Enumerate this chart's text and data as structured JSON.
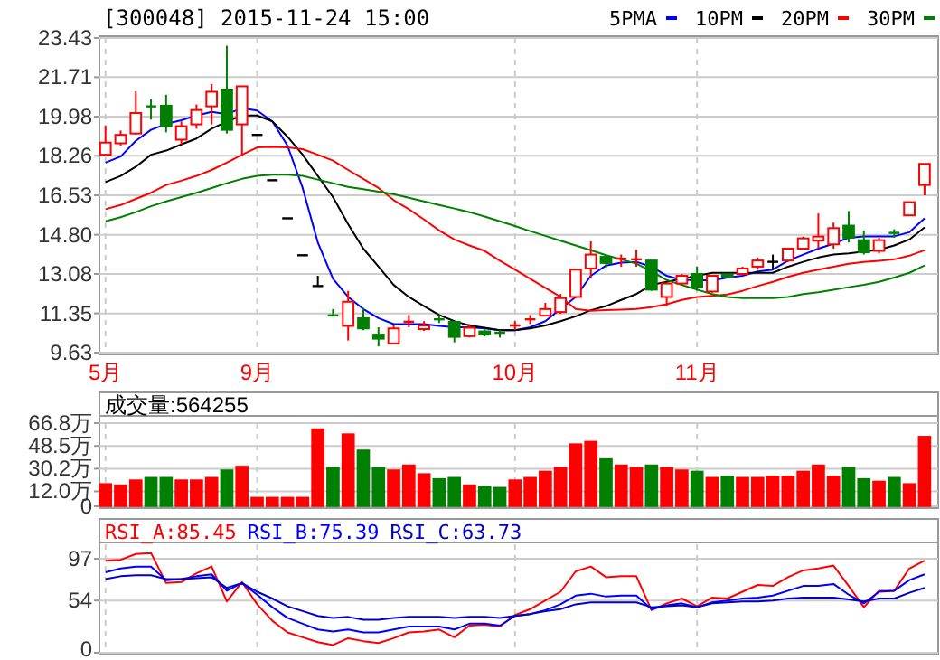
{
  "chart_data": [
    {
      "type": "candlestick",
      "title": "[300048] 2015-11-24 15:00",
      "legend": "top right",
      "grid": true,
      "categories": [
        "5月",
        null,
        null,
        null,
        null,
        null,
        null,
        null,
        null,
        null,
        "9月",
        null,
        null,
        null,
        null,
        null,
        null,
        null,
        null,
        null,
        null,
        null,
        null,
        null,
        null,
        null,
        null,
        "10月",
        null,
        null,
        null,
        null,
        null,
        null,
        null,
        null,
        null,
        null,
        null,
        "11月",
        null,
        null,
        null,
        null,
        null,
        null,
        null,
        null,
        null,
        null,
        null,
        null,
        null,
        null,
        null
      ],
      "ylim": [
        9.63,
        23.43
      ],
      "yticks": [
        9.63,
        11.35,
        13.08,
        {
          "value": 14.8,
          "label": "14.80"
        },
        16.53,
        18.26,
        19.98,
        21.71,
        23.43
      ],
      "ohlc": [
        [
          18.31,
          19.58,
          18.23,
          18.84
        ],
        [
          18.81,
          19.37,
          18.71,
          19.18
        ],
        [
          19.24,
          21.09,
          19.19,
          20.14
        ],
        [
          20.43,
          20.75,
          19.85,
          20.4
        ],
        [
          20.46,
          20.94,
          19.29,
          19.56
        ],
        [
          18.97,
          19.77,
          18.76,
          19.56
        ],
        [
          19.64,
          20.51,
          19.45,
          20.27
        ],
        [
          20.43,
          21.41,
          19.64,
          21.07
        ],
        [
          21.17,
          23.09,
          19.24,
          19.4
        ],
        [
          19.64,
          21.31,
          18.31,
          21.31
        ],
        [
          19.18,
          19.18,
          19.18,
          19.18
        ],
        [
          17.19,
          17.19,
          17.19,
          17.19
        ],
        [
          15.52,
          15.52,
          15.52,
          15.52
        ],
        [
          13.9,
          13.9,
          13.9,
          13.9
        ],
        [
          12.55,
          13.0,
          12.55,
          12.55
        ],
        [
          11.26,
          11.54,
          11.22,
          11.24
        ],
        [
          10.8,
          12.34,
          10.16,
          11.86
        ],
        [
          11.14,
          11.59,
          10.61,
          10.69
        ],
        [
          10.42,
          10.74,
          9.9,
          10.24
        ],
        [
          10.03,
          10.85,
          10.03,
          10.69
        ],
        [
          10.93,
          11.28,
          10.74,
          10.98
        ],
        [
          10.66,
          11.01,
          10.58,
          10.82
        ],
        [
          11.09,
          11.28,
          10.93,
          11.04
        ],
        [
          10.98,
          10.98,
          10.08,
          10.32
        ],
        [
          10.35,
          10.88,
          10.29,
          10.72
        ],
        [
          10.56,
          10.64,
          10.34,
          10.42
        ],
        [
          10.5,
          10.61,
          10.29,
          10.48
        ],
        [
          10.77,
          11.01,
          10.61,
          10.82
        ],
        [
          11.04,
          11.28,
          10.88,
          11.09
        ],
        [
          11.25,
          11.81,
          11.25,
          11.54
        ],
        [
          11.41,
          12.2,
          11.33,
          12.02
        ],
        [
          12.07,
          13.27,
          12.02,
          13.27
        ],
        [
          13.32,
          14.51,
          12.92,
          13.93
        ],
        [
          13.83,
          13.93,
          13.35,
          13.56
        ],
        [
          13.7,
          13.93,
          13.4,
          13.75
        ],
        [
          13.67,
          14.14,
          13.4,
          13.72
        ],
        [
          13.67,
          13.67,
          12.34,
          12.39
        ],
        [
          12.07,
          12.66,
          11.67,
          12.66
        ],
        [
          12.66,
          13.08,
          12.6,
          13.0
        ],
        [
          13.08,
          13.4,
          12.34,
          12.5
        ],
        [
          12.31,
          13.0,
          12.26,
          13.0
        ],
        [
          13.05,
          13.08,
          12.92,
          12.95
        ],
        [
          13.08,
          13.4,
          13.03,
          13.32
        ],
        [
          13.4,
          13.8,
          13.27,
          13.67
        ],
        [
          13.61,
          13.93,
          13.27,
          13.61
        ],
        [
          13.67,
          14.19,
          13.61,
          14.19
        ],
        [
          14.19,
          14.72,
          14.14,
          14.64
        ],
        [
          14.54,
          15.73,
          14.19,
          14.72
        ],
        [
          14.38,
          15.33,
          14.19,
          15.09
        ],
        [
          15.2,
          15.84,
          14.46,
          14.67
        ],
        [
          14.56,
          14.99,
          13.93,
          14.03
        ],
        [
          14.09,
          14.67,
          13.98,
          14.56
        ],
        [
          14.88,
          15.04,
          14.67,
          14.85
        ],
        [
          15.65,
          16.23,
          15.65,
          16.23
        ],
        [
          16.98,
          17.91,
          16.53,
          17.91
        ]
      ],
      "colors": [
        "#ff0000",
        "#ff0000",
        "#ff0000",
        "#008000",
        "#008000",
        "#ff0000",
        "#ff0000",
        "#ff0000",
        "#008000",
        "#ff0000",
        "#000000",
        "#000000",
        "#000000",
        "#000000",
        "#000000",
        "#008000",
        "#ff0000",
        "#008000",
        "#008000",
        "#ff0000",
        "#ff0000",
        "#ff0000",
        "#008000",
        "#008000",
        "#ff0000",
        "#008000",
        "#008000",
        "#ff0000",
        "#ff0000",
        "#ff0000",
        "#ff0000",
        "#ff0000",
        "#ff0000",
        "#008000",
        "#ff0000",
        "#ff0000",
        "#008000",
        "#ff0000",
        "#ff0000",
        "#008000",
        "#ff0000",
        "#008000",
        "#ff0000",
        "#ff0000",
        "#000000",
        "#ff0000",
        "#ff0000",
        "#ff0000",
        "#ff0000",
        "#008000",
        "#008000",
        "#ff0000",
        "#008000",
        "#ff0000",
        "#ff0000"
      ],
      "series": [
        {
          "type": "line",
          "name": "5PMA",
          "color": "#0000ff",
          "values": [
            17.96,
            18.23,
            18.92,
            19.4,
            19.66,
            19.82,
            20.03,
            20.19,
            20.09,
            20.35,
            20.25,
            19.77,
            18.71,
            16.85,
            14.46,
            12.87,
            12.07,
            11.54,
            11.14,
            10.88,
            10.88,
            10.88,
            10.8,
            10.74,
            10.74,
            10.69,
            10.61,
            10.61,
            10.74,
            11.01,
            11.54,
            12.07,
            13.0,
            13.45,
            13.58,
            13.61,
            13.4,
            13.0,
            12.81,
            12.81,
            12.79,
            12.92,
            13.0,
            13.19,
            13.27,
            13.66,
            13.93,
            14.19,
            14.41,
            14.67,
            14.73,
            14.73,
            14.73,
            14.91,
            15.52
          ]
        },
        {
          "type": "line",
          "name": "10PM",
          "color": "#000000",
          "values": [
            17.11,
            17.38,
            17.78,
            18.31,
            18.49,
            18.76,
            19.02,
            19.45,
            19.77,
            20.03,
            20.03,
            19.77,
            19.1,
            18.31,
            17.38,
            16.45,
            15.26,
            14.19,
            13.4,
            12.6,
            12.07,
            11.67,
            11.28,
            11.01,
            10.82,
            10.72,
            10.61,
            10.61,
            10.69,
            10.82,
            11.01,
            11.22,
            11.49,
            11.67,
            11.94,
            12.2,
            12.6,
            12.73,
            12.87,
            13.0,
            13.13,
            13.13,
            13.13,
            13.13,
            13.13,
            13.4,
            13.61,
            13.8,
            13.93,
            13.98,
            14.06,
            14.14,
            14.33,
            14.59,
            15.12
          ]
        },
        {
          "type": "line",
          "name": "20PM",
          "color": "#ff0000",
          "values": [
            15.92,
            16.1,
            16.37,
            16.64,
            16.98,
            17.17,
            17.38,
            17.64,
            17.96,
            18.31,
            18.63,
            18.65,
            18.63,
            18.55,
            18.31,
            18.05,
            17.64,
            17.25,
            16.85,
            16.32,
            15.92,
            15.47,
            14.99,
            14.59,
            14.33,
            14.09,
            13.66,
            13.27,
            12.87,
            12.47,
            12.07,
            11.54,
            11.46,
            11.49,
            11.51,
            11.54,
            11.62,
            11.75,
            11.94,
            12.07,
            12.12,
            12.18,
            12.34,
            12.55,
            12.73,
            12.95,
            13.13,
            13.27,
            13.4,
            13.53,
            13.61,
            13.66,
            13.72,
            13.88,
            14.12
          ]
        },
        {
          "type": "line",
          "name": "30PM",
          "color": "#008000",
          "values": [
            15.39,
            15.57,
            15.79,
            16.05,
            16.26,
            16.45,
            16.64,
            16.85,
            17.06,
            17.25,
            17.38,
            17.43,
            17.43,
            17.38,
            17.22,
            17.06,
            16.9,
            16.8,
            16.69,
            16.58,
            16.42,
            16.26,
            16.1,
            15.95,
            15.79,
            15.6,
            15.39,
            15.18,
            14.96,
            14.75,
            14.54,
            14.33,
            14.12,
            13.9,
            13.72,
            13.53,
            13.19,
            12.81,
            12.6,
            12.39,
            12.2,
            12.07,
            12.02,
            12.02,
            12.02,
            12.07,
            12.2,
            12.28,
            12.39,
            12.5,
            12.6,
            12.73,
            12.92,
            13.13,
            13.45
          ]
        }
      ]
    },
    {
      "type": "bar",
      "title": "成交量:564255",
      "grid": "y",
      "tick_labels": "y",
      "categories": [
        null,
        null,
        null,
        null,
        null,
        null,
        null,
        null,
        null,
        null,
        null,
        null,
        null,
        null,
        null,
        null,
        null,
        null,
        null,
        null,
        null,
        null,
        null,
        null,
        null,
        null,
        null,
        null,
        null,
        null,
        null,
        null,
        null,
        null,
        null,
        null,
        null,
        null,
        null,
        null,
        null,
        null,
        null,
        null,
        null,
        null,
        null,
        null,
        null,
        null,
        null,
        null,
        null,
        null,
        null
      ],
      "ylim": [
        0,
        66.8
      ],
      "yticks": [
        0,
        {
          "value": 12,
          "label": "12.0万"
        },
        {
          "value": 30.2,
          "label": "30.2万"
        },
        {
          "value": 48.5,
          "label": "48.5万"
        },
        {
          "value": 66.8,
          "label": "66.8万"
        }
      ],
      "values": [
        18,
        17,
        21,
        23,
        23,
        21,
        21,
        23,
        29,
        32,
        7,
        7,
        7,
        7,
        62,
        31,
        58,
        45,
        31,
        29,
        33,
        26,
        22,
        23,
        17,
        16,
        15,
        21,
        23,
        28,
        31,
        50,
        52,
        38,
        33,
        31,
        33,
        31,
        29,
        28,
        23,
        24,
        23,
        23,
        24,
        24,
        28,
        33,
        24,
        31,
        22,
        20,
        23,
        18,
        56
      ],
      "colors": [
        "#ff0000",
        "#ff0000",
        "#ff0000",
        "#008000",
        "#008000",
        "#ff0000",
        "#ff0000",
        "#ff0000",
        "#008000",
        "#ff0000",
        "#ff0000",
        "#ff0000",
        "#ff0000",
        "#ff0000",
        "#ff0000",
        "#008000",
        "#ff0000",
        "#008000",
        "#008000",
        "#ff0000",
        "#ff0000",
        "#ff0000",
        "#008000",
        "#008000",
        "#ff0000",
        "#008000",
        "#008000",
        "#ff0000",
        "#ff0000",
        "#ff0000",
        "#ff0000",
        "#ff0000",
        "#ff0000",
        "#008000",
        "#ff0000",
        "#ff0000",
        "#008000",
        "#ff0000",
        "#ff0000",
        "#008000",
        "#ff0000",
        "#008000",
        "#ff0000",
        "#ff0000",
        "#ff0000",
        "#ff0000",
        "#ff0000",
        "#ff0000",
        "#ff0000",
        "#008000",
        "#008000",
        "#ff0000",
        "#008000",
        "#ff0000",
        "#ff0000"
      ]
    },
    {
      "type": "line",
      "grid": "y",
      "tick_labels": "y",
      "legend": "top left",
      "categories": [
        null,
        null,
        null,
        null,
        null,
        null,
        null,
        null,
        null,
        null,
        null,
        null,
        null,
        null,
        null,
        null,
        null,
        null,
        null,
        null,
        null,
        null,
        null,
        null,
        null,
        null,
        null,
        null,
        null,
        null,
        null,
        null,
        null,
        null,
        null,
        null,
        null,
        null,
        null,
        null,
        null,
        null,
        null,
        null,
        null,
        null,
        null,
        null,
        null,
        null,
        null,
        null,
        null,
        null,
        null
      ],
      "ylim": [
        0,
        112
      ],
      "yticks": [
        0,
        54,
        97
      ],
      "series": [
        {
          "name": "RSI_A:85.45",
          "color": "#ff0000",
          "values": [
            95,
            96,
            102,
            103,
            72,
            73,
            82,
            89,
            53,
            73,
            50,
            33,
            21,
            16,
            11,
            8,
            15,
            12,
            10,
            15,
            21,
            22,
            24,
            16,
            28,
            29,
            27,
            39,
            45,
            54,
            63,
            84,
            89,
            78,
            79,
            79,
            44,
            51,
            56,
            48,
            57,
            56,
            63,
            70,
            69,
            78,
            85,
            87,
            90,
            69,
            47,
            64,
            64,
            87,
            95
          ]
        },
        {
          "name": "RSI_B:75.39",
          "color": "#0000ff",
          "values": [
            83,
            87,
            89,
            89,
            75,
            76,
            79,
            81,
            64,
            72,
            60,
            47,
            36,
            30,
            24,
            22,
            24,
            21,
            21,
            24,
            27,
            27,
            27,
            24,
            30,
            30,
            28,
            38,
            40,
            44,
            50,
            59,
            61,
            58,
            59,
            59,
            45,
            49,
            51,
            47,
            52,
            54,
            56,
            57,
            59,
            64,
            69,
            69,
            71,
            60,
            51,
            63,
            64,
            75,
            81
          ]
        },
        {
          "name": "RSI_C:63.73",
          "color": "#0000c8",
          "values": [
            76,
            79,
            80,
            80,
            76,
            76,
            77,
            78,
            67,
            72,
            63,
            56,
            48,
            43,
            38,
            36,
            37,
            34,
            34,
            36,
            37,
            37,
            37,
            36,
            37,
            37,
            36,
            38,
            40,
            43,
            45,
            50,
            52,
            52,
            52,
            52,
            47,
            48,
            49,
            47,
            51,
            52,
            53,
            53,
            54,
            56,
            57,
            57,
            57,
            55,
            53,
            56,
            56,
            62,
            67
          ]
        }
      ]
    }
  ]
}
